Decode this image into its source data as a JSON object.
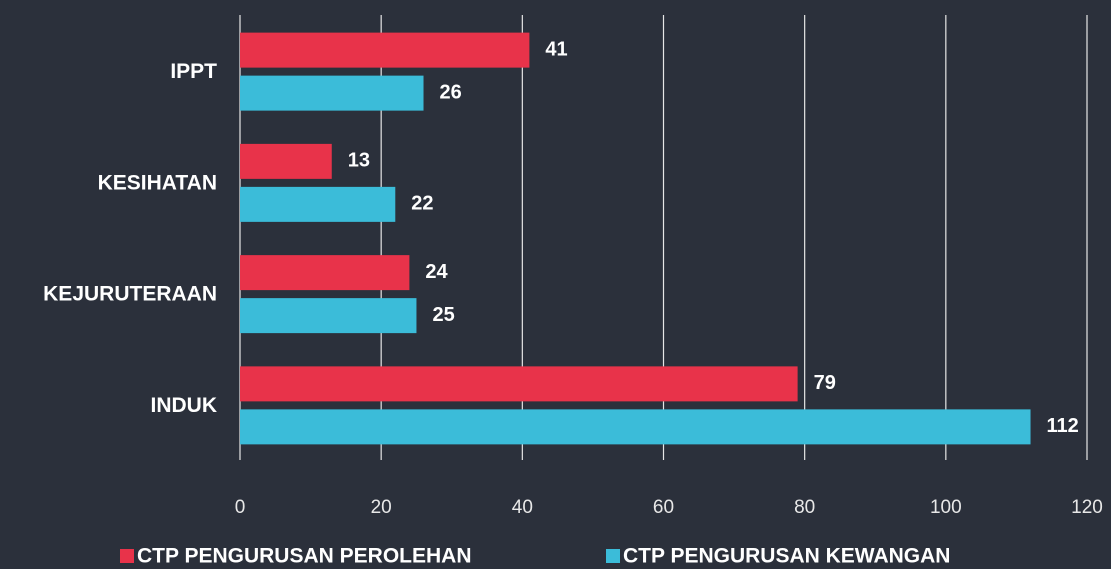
{
  "chart_data": {
    "type": "bar",
    "orientation": "horizontal",
    "categories": [
      "IPPT",
      "KESIHATAN",
      "KEJURUTERAAN",
      "INDUK"
    ],
    "series": [
      {
        "name": "CTP PENGURUSAN PEROLEHAN",
        "color": "#e8334a",
        "values": [
          41,
          13,
          24,
          79
        ]
      },
      {
        "name": "CTP PENGURUSAN KEWANGAN",
        "color": "#3bbcd9",
        "values": [
          26,
          22,
          25,
          112
        ]
      }
    ],
    "xlim": [
      0,
      120
    ],
    "xticks": [
      0,
      20,
      40,
      60,
      80,
      100,
      120
    ],
    "grid": true,
    "legend": "bottom"
  }
}
